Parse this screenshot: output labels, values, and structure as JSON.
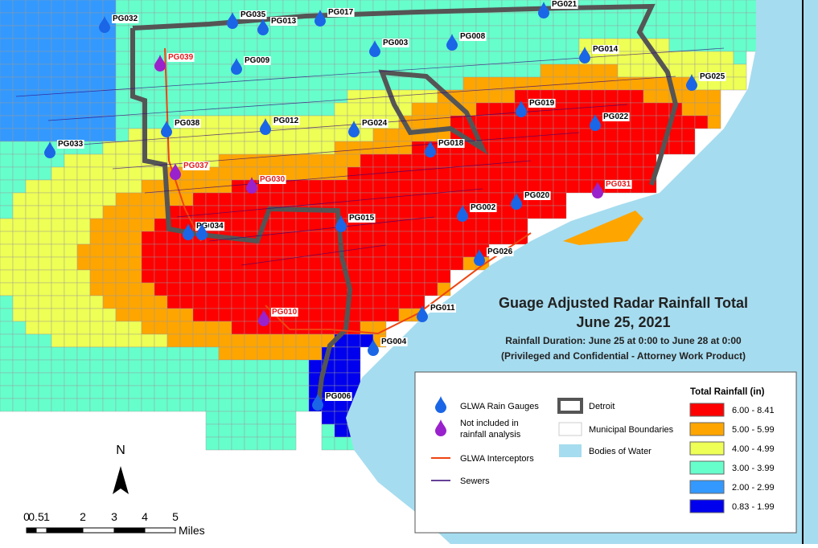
{
  "title": "Guage Adjusted Radar Rainfall Total",
  "date": "June 25, 2021",
  "duration": "Rainfall Duration: June 25 at 0:00 to June 28 at 0:00",
  "note": "(Privileged and Confidential - Attorney Work Product)",
  "legend": {
    "gauges": "GLWA Rain Gauges",
    "excluded": [
      "Not included in",
      "rainfall analysis"
    ],
    "interceptors": "GLWA Interceptors",
    "sewers": "Sewers",
    "detroit": "Detroit",
    "municipal": "Municipal Boundaries",
    "water": "Bodies of Water",
    "rain_title": "Total Rainfall (in)",
    "classes": [
      {
        "label": "6.00 - 8.41",
        "color": "#ff0000"
      },
      {
        "label": "5.00 - 5.99",
        "color": "#ffa500"
      },
      {
        "label": "4.00 - 4.99",
        "color": "#eeff55"
      },
      {
        "label": "3.00 - 3.99",
        "color": "#66ffcc"
      },
      {
        "label": "2.00 - 2.99",
        "color": "#3399ff"
      },
      {
        "label": "0.83 - 1.99",
        "color": "#0000ee"
      }
    ]
  },
  "gauges": [
    {
      "label": "PG032",
      "included": true
    },
    {
      "label": "PG035",
      "included": true
    },
    {
      "label": "PG013",
      "included": true
    },
    {
      "label": "PG017",
      "included": true
    },
    {
      "label": "PG021",
      "included": true
    },
    {
      "label": "PG003",
      "included": true
    },
    {
      "label": "PG008",
      "included": true
    },
    {
      "label": "PG014",
      "included": true
    },
    {
      "label": "PG039",
      "included": false
    },
    {
      "label": "PG009",
      "included": true
    },
    {
      "label": "PG025",
      "included": true
    },
    {
      "label": "PG019",
      "included": true
    },
    {
      "label": "PG022",
      "included": true
    },
    {
      "label": "PG038",
      "included": true
    },
    {
      "label": "PG012",
      "included": true
    },
    {
      "label": "PG024",
      "included": true
    },
    {
      "label": "PG018",
      "included": true
    },
    {
      "label": "PG033",
      "included": true
    },
    {
      "label": "PG037",
      "included": false
    },
    {
      "label": "PG030",
      "included": false
    },
    {
      "label": "PG031",
      "included": false
    },
    {
      "label": "PG020",
      "included": true
    },
    {
      "label": "PG002",
      "included": true
    },
    {
      "label": "PG015",
      "included": true
    },
    {
      "label": "PG036",
      "included": true
    },
    {
      "label": "034",
      "included": true
    },
    {
      "label": "PG026",
      "included": true
    },
    {
      "label": "PG011",
      "included": true
    },
    {
      "label": "PG010",
      "included": false
    },
    {
      "label": "PG004",
      "included": true
    },
    {
      "label": "PG006",
      "included": true
    }
  ],
  "north": "N",
  "scale": {
    "labels": [
      "0",
      "0.5",
      "1",
      "2",
      "3",
      "4",
      "5"
    ],
    "unit": "Miles"
  }
}
